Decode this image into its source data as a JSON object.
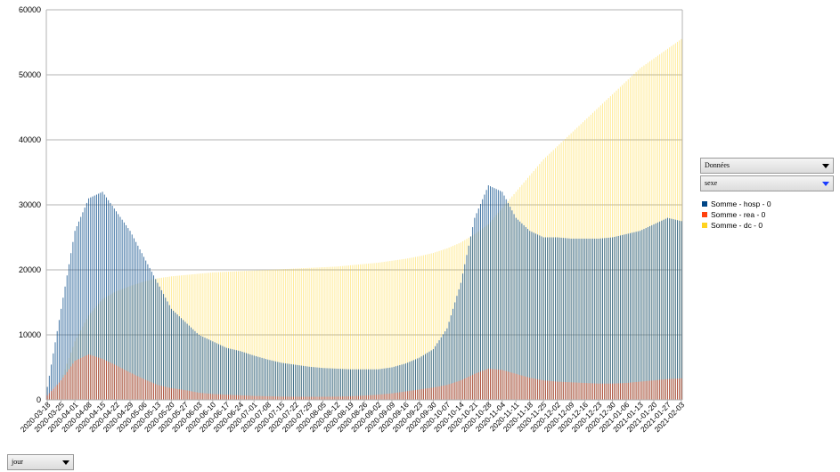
{
  "chart_data": {
    "type": "bar",
    "y_ticks": [
      "0",
      "10000",
      "20000",
      "30000",
      "40000",
      "50000",
      "60000"
    ],
    "ylim": [
      0,
      60000
    ],
    "x_tick_labels": [
      "2020-03-18",
      "2020-03-25",
      "2020-04-01",
      "2020-04-08",
      "2020-04-15",
      "2020-04-22",
      "2020-04-29",
      "2020-05-06",
      "2020-05-13",
      "2020-05-20",
      "2020-05-27",
      "2020-06-03",
      "2020-06-10",
      "2020-06-17",
      "2020-06-24",
      "2020-07-01",
      "2020-07-08",
      "2020-07-15",
      "2020-07-22",
      "2020-07-29",
      "2020-08-05",
      "2020-08-12",
      "2020-08-19",
      "2020-08-26",
      "2020-09-02",
      "2020-09-09",
      "2020-09-16",
      "2020-09-23",
      "2020-09-30",
      "2020-10-07",
      "2020-10-14",
      "2020-10-21",
      "2020-10-28",
      "2020-11-04",
      "2020-11-11",
      "2020-11-18",
      "2020-11-25",
      "2020-12-02",
      "2020-12-09",
      "2020-12-16",
      "2020-12-23",
      "2020-12-30",
      "2021-01-06",
      "2021-01-13",
      "2021-01-20",
      "2021-01-27",
      "2021-02-03"
    ],
    "series": [
      {
        "name": "Somme - hosp - 0",
        "color": "#004586",
        "values": [
          2000,
          14000,
          26000,
          31000,
          32000,
          29000,
          26000,
          22000,
          18000,
          14000,
          12000,
          10000,
          9000,
          8000,
          7500,
          6800,
          6200,
          5700,
          5400,
          5100,
          4900,
          4800,
          4700,
          4700,
          4700,
          5000,
          5600,
          6500,
          7800,
          11000,
          18000,
          28000,
          33000,
          32000,
          28000,
          26000,
          25000,
          25000,
          24800,
          24800,
          24800,
          25000,
          25500,
          26000,
          27000,
          28000,
          27500
        ]
      },
      {
        "name": "Somme - rea - 0",
        "color": "#ff420e",
        "values": [
          700,
          3000,
          6000,
          7000,
          6300,
          5300,
          4200,
          3200,
          2300,
          1800,
          1500,
          1100,
          900,
          800,
          700,
          600,
          550,
          500,
          480,
          480,
          480,
          500,
          550,
          650,
          800,
          1000,
          1300,
          1600,
          1900,
          2300,
          3000,
          4000,
          4800,
          4600,
          4000,
          3400,
          3000,
          2800,
          2700,
          2600,
          2500,
          2500,
          2600,
          2800,
          3000,
          3200,
          3300
        ]
      },
      {
        "name": "Somme - dc - 0",
        "color": "#ffd320",
        "values": [
          200,
          3000,
          9000,
          13000,
          15500,
          16700,
          17500,
          18200,
          18700,
          19000,
          19200,
          19400,
          19600,
          19700,
          19800,
          19900,
          20000,
          20100,
          20200,
          20300,
          20400,
          20500,
          20700,
          20900,
          21100,
          21400,
          21700,
          22100,
          22600,
          23300,
          24200,
          25500,
          27000,
          29500,
          32000,
          34500,
          37000,
          39000,
          41000,
          43000,
          45000,
          47000,
          49000,
          51000,
          52500,
          54000,
          55500
        ]
      }
    ]
  },
  "ui": {
    "data_field": "Données",
    "col_field": "sexe",
    "row_field": "jour"
  }
}
